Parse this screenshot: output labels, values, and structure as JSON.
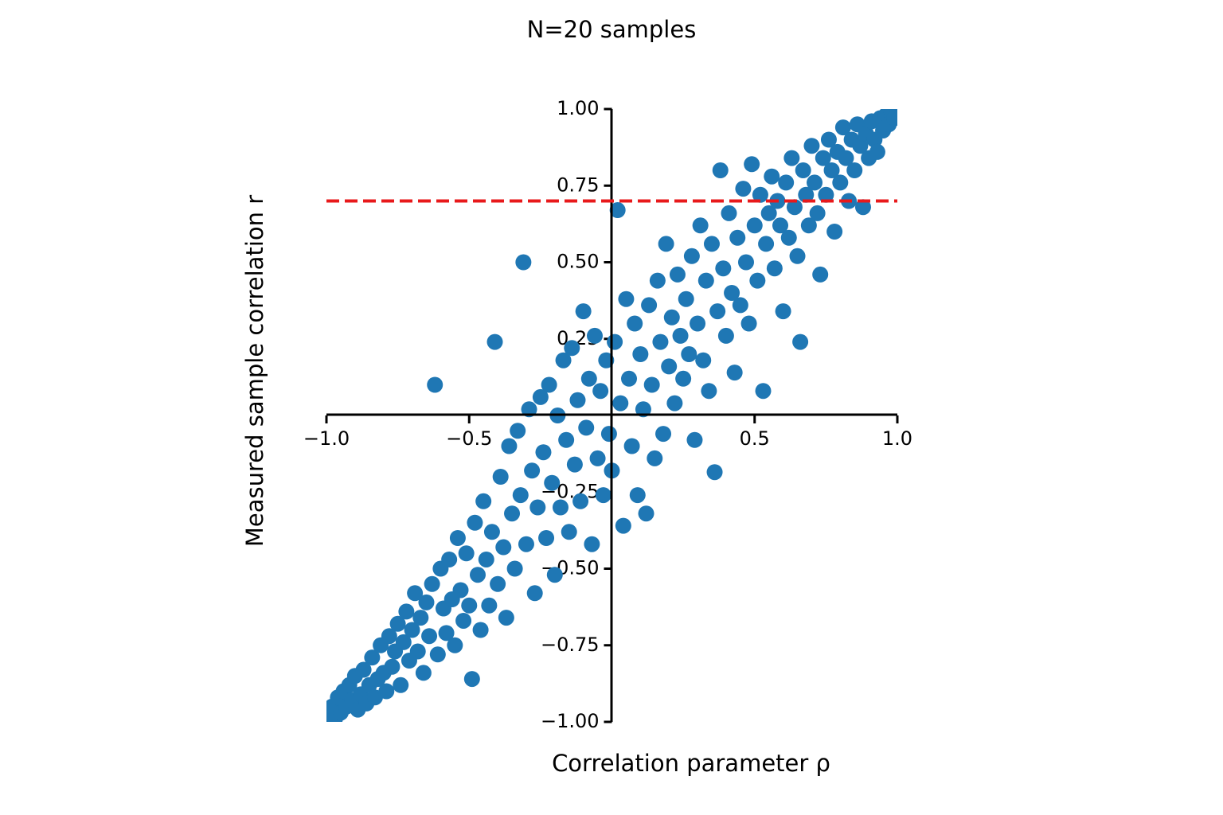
{
  "chart_data": {
    "type": "scatter",
    "title": "N=20 samples",
    "xlabel": "Correlation parameter ρ",
    "ylabel": "Measured sample correlation r",
    "color": "#1f77b4",
    "xlim": [
      -1,
      1
    ],
    "ylim": [
      -1,
      1
    ],
    "xticks": [
      {
        "value": -1,
        "label": "−1.0"
      },
      {
        "value": -0.5,
        "label": "−0.5"
      },
      0.5,
      {
        "value": 1,
        "label": "1.0"
      }
    ],
    "yticks": [
      {
        "value": -1,
        "label": "−1.00"
      },
      {
        "value": -0.75,
        "label": "−0.75"
      },
      {
        "value": -0.5,
        "label": "−0.50"
      },
      {
        "value": -0.25,
        "label": "−0.25"
      },
      0.25,
      {
        "value": 0.5,
        "label": "0.50"
      },
      0.75,
      {
        "value": 1,
        "label": "1.00"
      }
    ],
    "reference_line": {
      "y": 0.7,
      "color": "#e8191b",
      "style": "dashed"
    },
    "x": [
      -0.99,
      -0.98,
      -0.97,
      -0.96,
      -0.95,
      -0.94,
      -0.93,
      -0.92,
      -0.91,
      -0.9,
      -0.89,
      -0.88,
      -0.87,
      -0.86,
      -0.85,
      -0.84,
      -0.83,
      -0.82,
      -0.81,
      -0.8,
      -0.79,
      -0.78,
      -0.77,
      -0.76,
      -0.75,
      -0.74,
      -0.73,
      -0.72,
      -0.71,
      -0.7,
      -0.69,
      -0.68,
      -0.67,
      -0.66,
      -0.65,
      -0.64,
      -0.63,
      -0.62,
      -0.61,
      -0.6,
      -0.59,
      -0.58,
      -0.57,
      -0.56,
      -0.55,
      -0.54,
      -0.53,
      -0.52,
      -0.51,
      -0.5,
      -0.49,
      -0.48,
      -0.47,
      -0.46,
      -0.45,
      -0.44,
      -0.43,
      -0.42,
      -0.41,
      -0.4,
      -0.39,
      -0.38,
      -0.37,
      -0.36,
      -0.35,
      -0.34,
      -0.33,
      -0.32,
      -0.31,
      -0.3,
      -0.29,
      -0.28,
      -0.27,
      -0.26,
      -0.25,
      -0.24,
      -0.23,
      -0.22,
      -0.21,
      -0.2,
      -0.19,
      -0.18,
      -0.17,
      -0.16,
      -0.15,
      -0.14,
      -0.13,
      -0.12,
      -0.11,
      -0.1,
      -0.09,
      -0.08,
      -0.07,
      -0.06,
      -0.05,
      -0.04,
      -0.03,
      -0.02,
      -0.01,
      0,
      0.01,
      0.02,
      0.03,
      0.04,
      0.05,
      0.06,
      0.07,
      0.08,
      0.09,
      0.1,
      0.11,
      0.12,
      0.13,
      0.14,
      0.15,
      0.16,
      0.17,
      0.18,
      0.19,
      0.2,
      0.21,
      0.22,
      0.23,
      0.24,
      0.25,
      0.26,
      0.27,
      0.28,
      0.29,
      0.3,
      0.31,
      0.32,
      0.33,
      0.34,
      0.35,
      0.36,
      0.37,
      0.38,
      0.39,
      0.4,
      0.41,
      0.42,
      0.43,
      0.44,
      0.45,
      0.46,
      0.47,
      0.48,
      0.49,
      0.5,
      0.51,
      0.52,
      0.53,
      0.54,
      0.55,
      0.56,
      0.57,
      0.58,
      0.59,
      0.6,
      0.61,
      0.62,
      0.63,
      0.64,
      0.65,
      0.66,
      0.67,
      0.68,
      0.69,
      0.7,
      0.71,
      0.72,
      0.73,
      0.74,
      0.75,
      0.76,
      0.77,
      0.78,
      0.79,
      0.8,
      0.81,
      0.82,
      0.83,
      0.84,
      0.85,
      0.86,
      0.87,
      0.88,
      0.89,
      0.9,
      0.91,
      0.92,
      0.93,
      0.94,
      0.95,
      0.96,
      0.97,
      0.98,
      0.99
    ],
    "y": [
      -0.98,
      -0.95,
      -0.99,
      -0.92,
      -0.97,
      -0.9,
      -0.95,
      -0.88,
      -0.93,
      -0.85,
      -0.96,
      -0.91,
      -0.83,
      -0.94,
      -0.88,
      -0.79,
      -0.92,
      -0.86,
      -0.75,
      -0.84,
      -0.9,
      -0.72,
      -0.82,
      -0.77,
      -0.68,
      -0.88,
      -0.74,
      -0.64,
      -0.8,
      -0.7,
      -0.58,
      -0.77,
      -0.66,
      -0.84,
      -0.61,
      -0.72,
      -0.55,
      0.1,
      -0.78,
      -0.5,
      -0.63,
      -0.71,
      -0.47,
      -0.6,
      -0.75,
      -0.4,
      -0.57,
      -0.67,
      -0.45,
      -0.62,
      -0.86,
      -0.35,
      -0.52,
      -0.7,
      -0.28,
      -0.47,
      -0.62,
      -0.38,
      0.24,
      -0.55,
      -0.2,
      -0.43,
      -0.66,
      -0.1,
      -0.32,
      -0.5,
      -0.05,
      -0.26,
      0.5,
      -0.42,
      0.02,
      -0.18,
      -0.58,
      -0.3,
      0.06,
      -0.12,
      -0.4,
      0.1,
      -0.22,
      -0.52,
      0,
      -0.3,
      0.18,
      -0.08,
      -0.38,
      0.22,
      -0.16,
      0.05,
      -0.28,
      0.34,
      -0.04,
      0.12,
      -0.42,
      0.26,
      -0.14,
      0.08,
      -0.26,
      0.18,
      -0.06,
      -0.18,
      0.24,
      0.67,
      0.04,
      -0.36,
      0.38,
      0.12,
      -0.1,
      0.3,
      -0.26,
      0.2,
      0.02,
      -0.32,
      0.36,
      0.1,
      -0.14,
      0.44,
      0.24,
      -0.06,
      0.56,
      0.16,
      0.32,
      0.04,
      0.46,
      0.26,
      0.12,
      0.38,
      0.2,
      0.52,
      -0.08,
      0.3,
      0.62,
      0.18,
      0.44,
      0.08,
      0.56,
      -0.185,
      0.34,
      0.8,
      0.48,
      0.26,
      0.66,
      0.4,
      0.14,
      0.58,
      0.36,
      0.74,
      0.5,
      0.3,
      0.82,
      0.62,
      0.44,
      0.72,
      0.08,
      0.56,
      0.66,
      0.78,
      0.48,
      0.7,
      0.62,
      0.34,
      0.76,
      0.58,
      0.84,
      0.68,
      0.52,
      0.24,
      0.8,
      0.72,
      0.62,
      0.88,
      0.76,
      0.66,
      0.46,
      0.84,
      0.72,
      0.9,
      0.8,
      0.6,
      0.86,
      0.76,
      0.94,
      0.84,
      0.7,
      0.9,
      0.8,
      0.95,
      0.88,
      0.68,
      0.92,
      0.84,
      0.96,
      0.9,
      0.86,
      0.97,
      0.93,
      0.98,
      0.95,
      0.99,
      0.97
    ]
  }
}
